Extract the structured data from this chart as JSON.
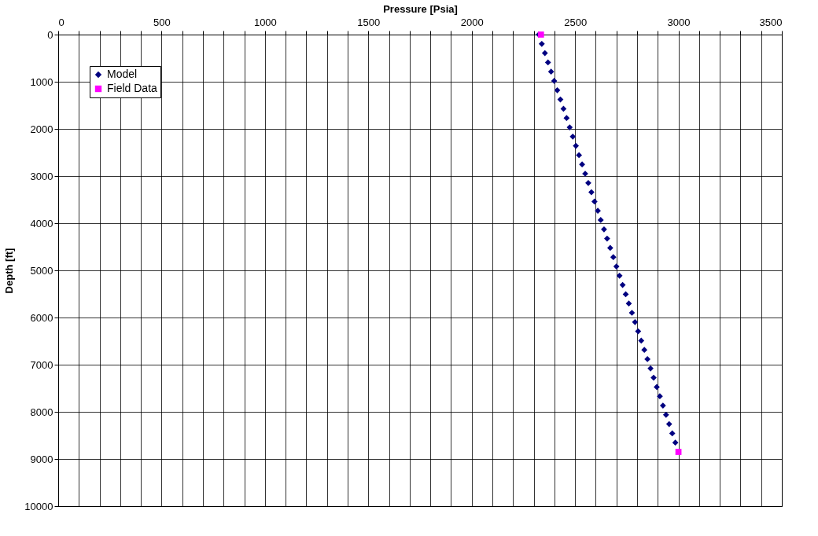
{
  "chart_data": {
    "type": "scatter",
    "xlabel": "Pressure [Psia]",
    "ylabel": "Depth [ft]",
    "xlim": [
      0,
      3500
    ],
    "xticks": [
      0,
      {
        "value": 100,
        "label": null
      },
      {
        "value": 200,
        "label": null
      },
      {
        "value": 300,
        "label": null
      },
      {
        "value": 400,
        "label": null
      },
      500,
      {
        "value": 600,
        "label": null
      },
      {
        "value": 700,
        "label": null
      },
      {
        "value": 800,
        "label": null
      },
      {
        "value": 900,
        "label": null
      },
      1000,
      {
        "value": 1100,
        "label": null
      },
      {
        "value": 1200,
        "label": null
      },
      {
        "value": 1300,
        "label": null
      },
      {
        "value": 1400,
        "label": null
      },
      1500,
      {
        "value": 1600,
        "label": null
      },
      {
        "value": 1700,
        "label": null
      },
      {
        "value": 1800,
        "label": null
      },
      {
        "value": 1900,
        "label": null
      },
      2000,
      {
        "value": 2100,
        "label": null
      },
      {
        "value": 2200,
        "label": null
      },
      {
        "value": 2300,
        "label": null
      },
      {
        "value": 2400,
        "label": null
      },
      2500,
      {
        "value": 2600,
        "label": null
      },
      {
        "value": 2700,
        "label": null
      },
      {
        "value": 2800,
        "label": null
      },
      {
        "value": 2900,
        "label": null
      },
      3000,
      {
        "value": 3100,
        "label": null
      },
      {
        "value": 3200,
        "label": null
      },
      {
        "value": 3300,
        "label": null
      },
      {
        "value": 3400,
        "label": null
      },
      3500
    ],
    "ylim": [
      10000,
      0
    ],
    "yticks": [
      0,
      1000,
      2000,
      3000,
      4000,
      5000,
      6000,
      7000,
      8000,
      9000,
      10000
    ],
    "grid": true,
    "legend": "top left",
    "series": [
      {
        "name": "Model",
        "color": "#000080",
        "marker": "diamond",
        "x": [
          2324,
          2339,
          2354,
          2369,
          2384,
          2399,
          2414,
          2429,
          2444,
          2459,
          2474,
          2489,
          2504,
          2519,
          2534,
          2549,
          2564,
          2579,
          2594,
          2610,
          2624,
          2640,
          2655,
          2670,
          2685,
          2700,
          2715,
          2730,
          2745,
          2760,
          2775,
          2790,
          2805,
          2820,
          2835,
          2850,
          2865,
          2880,
          2895,
          2910,
          2925,
          2940,
          2955,
          2970,
          2985
        ],
        "values": [
          0,
          197,
          393,
          590,
          787,
          983,
          1180,
          1377,
          1573,
          1770,
          1967,
          2163,
          2360,
          2557,
          2753,
          2950,
          3147,
          3343,
          3540,
          3737,
          3933,
          4130,
          4327,
          4523,
          4720,
          4917,
          5113,
          5310,
          5507,
          5703,
          5900,
          6097,
          6293,
          6490,
          6687,
          6883,
          7080,
          7277,
          7473,
          7670,
          7867,
          8063,
          8260,
          8457,
          8653
        ]
      },
      {
        "name": "Field Data",
        "color": "#ff00ff",
        "marker": "square",
        "x": [
          2335,
          3000
        ],
        "values": [
          0,
          8850
        ]
      }
    ]
  }
}
